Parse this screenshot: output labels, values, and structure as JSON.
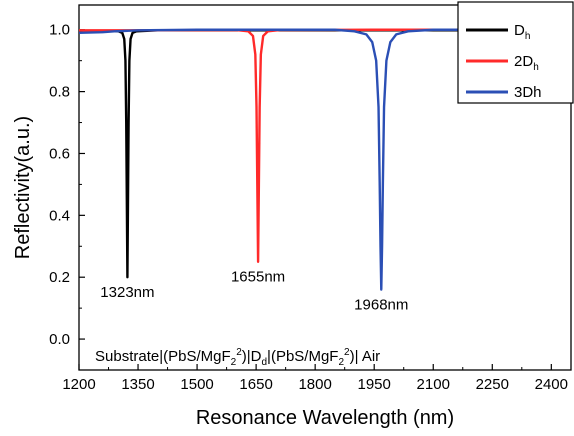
{
  "chart_data": {
    "type": "line",
    "xlabel": "Resonance Wavelength (nm)",
    "ylabel": "Reflectivity(a.u.)",
    "xlim": [
      1200,
      2450
    ],
    "ylim": [
      -0.1,
      1.08
    ],
    "x_ticks": [
      1200,
      1350,
      1500,
      1650,
      1800,
      1950,
      2100,
      2250,
      2400
    ],
    "y_ticks": [
      0.0,
      0.2,
      0.4,
      0.6,
      0.8,
      1.0
    ],
    "x_tick_labels": [
      "1200",
      "1350",
      "1500",
      "1650",
      "1800",
      "1950",
      "2100",
      "2250",
      "2400"
    ],
    "y_tick_labels": [
      "0.0",
      "0.2",
      "0.4",
      "0.6",
      "0.8",
      "1.0"
    ],
    "grid": false,
    "legend_position": "top-right",
    "series": [
      {
        "name": "D",
        "name_sub": "h",
        "color": "#000000",
        "x": [
          1200,
          1300,
          1310,
          1315,
          1318,
          1320,
          1321.5,
          1323,
          1324.5,
          1326,
          1328,
          1331,
          1336,
          1346,
          1400,
          2450
        ],
        "y": [
          0.995,
          0.995,
          0.99,
          0.97,
          0.9,
          0.7,
          0.45,
          0.2,
          0.45,
          0.7,
          0.9,
          0.97,
          0.99,
          0.995,
          0.998,
          0.998
        ]
      },
      {
        "name": "2D",
        "name_sub": "h",
        "color": "#ff2a2a",
        "x": [
          1200,
          1600,
          1630,
          1642,
          1648,
          1651,
          1653,
          1655,
          1657,
          1659,
          1662,
          1668,
          1680,
          1710,
          1950,
          2450
        ],
        "y": [
          0.998,
          0.999,
          0.995,
          0.98,
          0.92,
          0.75,
          0.5,
          0.25,
          0.5,
          0.75,
          0.92,
          0.98,
          0.995,
          0.999,
          1.0,
          1.0
        ]
      },
      {
        "name": "3Dh",
        "name_sub": "",
        "color": "#2b4fb5",
        "x": [
          1200,
          1260,
          1290,
          1350,
          1500,
          1700,
          1850,
          1900,
          1930,
          1945,
          1955,
          1961,
          1964,
          1966,
          1968,
          1970,
          1972,
          1975,
          1981,
          1991,
          2006,
          2036,
          2100,
          2450
        ],
        "y": [
          0.99,
          0.992,
          0.995,
          0.998,
          1.0,
          1.0,
          1.0,
          0.995,
          0.985,
          0.96,
          0.9,
          0.75,
          0.5,
          0.3,
          0.16,
          0.3,
          0.5,
          0.75,
          0.9,
          0.96,
          0.985,
          0.995,
          1.0,
          1.0
        ]
      }
    ],
    "annotations": [
      {
        "text": "1323nm",
        "x": 1323,
        "y": 0.2
      },
      {
        "text": "1655nm",
        "x": 1655,
        "y": 0.25
      },
      {
        "text": "1968nm",
        "x": 1968,
        "y": 0.16
      }
    ],
    "structure_label": {
      "prefix": "Substrate|(PbS/MgF",
      "sub1": "2",
      "sup1": "2",
      "middle": "|D",
      "sub2": "d",
      "middle2": "|(PbS/MgF",
      "sub3": "2",
      "sup2": "2",
      "suffix": "| Air"
    }
  }
}
